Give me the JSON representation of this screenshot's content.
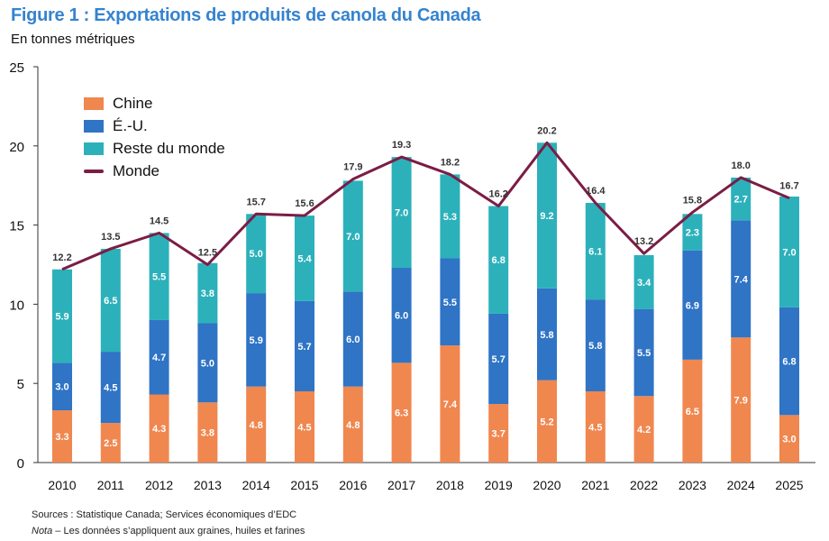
{
  "title": "Figure 1 : Exportations de produits de canola du Canada",
  "subtitle": "En tonnes métriques",
  "sources": "Sources : Statistique Canada; Services économiques d’EDC",
  "note_label": "Nota",
  "note_text": " – Les données s’appliquent aux graines, huiles et farines",
  "chart_data": {
    "type": "bar",
    "stacked": true,
    "title": "Figure 1 : Exportations de produits de canola du Canada",
    "ylabel": "En tonnes métriques",
    "ylim": [
      0,
      25
    ],
    "yticks": [
      0,
      5,
      10,
      15,
      20,
      25
    ],
    "grid": false,
    "legend_position": "top-left",
    "categories": [
      "2010",
      "2011",
      "2012",
      "2013",
      "2014",
      "2015",
      "2016",
      "2017",
      "2018",
      "2019",
      "2020",
      "2021",
      "2022",
      "2023",
      "2024",
      "2025"
    ],
    "series": [
      {
        "name": "Chine",
        "kind": "bar",
        "color": "#f0874f",
        "values": [
          3.3,
          2.5,
          4.3,
          3.8,
          4.8,
          4.5,
          4.8,
          6.3,
          7.4,
          3.7,
          5.2,
          4.5,
          4.2,
          6.5,
          7.9,
          3.0
        ]
      },
      {
        "name": "É.-U.",
        "kind": "bar",
        "color": "#2f74c5",
        "values": [
          3.0,
          4.5,
          4.7,
          5.0,
          5.9,
          5.7,
          6.0,
          6.0,
          5.5,
          5.7,
          5.8,
          5.8,
          5.5,
          6.9,
          7.4,
          6.8
        ]
      },
      {
        "name": "Reste du monde",
        "kind": "bar",
        "color": "#2cb1bb",
        "values": [
          5.9,
          6.5,
          5.5,
          3.8,
          5.0,
          5.4,
          7.0,
          7.0,
          5.3,
          6.8,
          9.2,
          6.1,
          3.4,
          2.3,
          2.7,
          7.0
        ]
      },
      {
        "name": "Monde",
        "kind": "line",
        "color": "#7b1d45",
        "values": [
          12.2,
          13.5,
          14.5,
          12.5,
          15.7,
          15.6,
          17.9,
          19.3,
          18.2,
          16.2,
          20.2,
          16.4,
          13.2,
          15.8,
          18.0,
          16.7
        ]
      }
    ]
  }
}
